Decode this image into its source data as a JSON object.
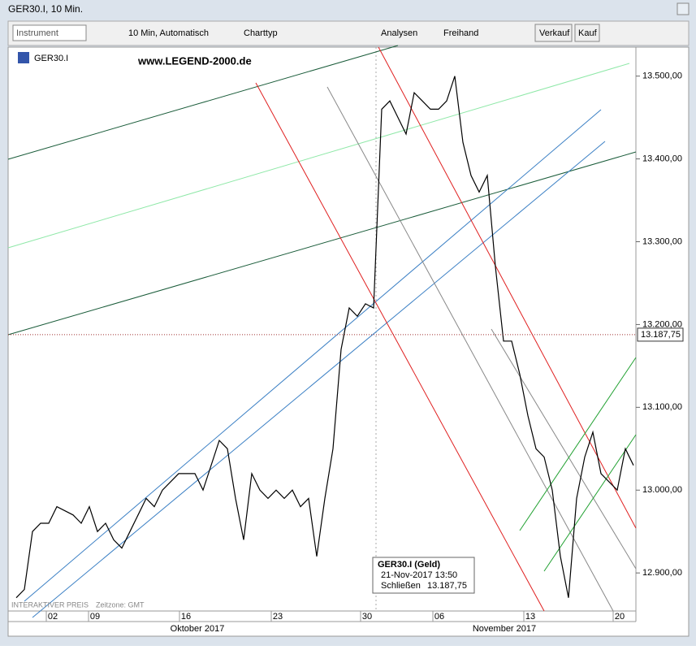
{
  "window": {
    "title": "GER30.I, 10 Min."
  },
  "toolbar": {
    "instrument": "Instrument",
    "interval": "10 Min,  Automatisch",
    "charttype": "Charttyp",
    "analysen": "Analysen",
    "freihand": "Freihand",
    "verkauf": "Verkauf",
    "kauf": "Kauf"
  },
  "chart_data": {
    "type": "line",
    "symbol": "GER30.I",
    "watermark": "www.LEGEND-2000.de",
    "footer": "INTERAKTIVER PREIS",
    "timezone": "Zeitzone: GMT",
    "color": "#000000",
    "values": [
      12870,
      12880,
      12950,
      12960,
      12960,
      12980,
      12975,
      12970,
      12960,
      12980,
      12950,
      12960,
      12940,
      12930,
      12950,
      12970,
      12990,
      12980,
      13000,
      13010,
      13020,
      13020,
      13020,
      13000,
      13030,
      13060,
      13050,
      12990,
      12940,
      13020,
      13000,
      12990,
      13000,
      12990,
      13000,
      12980,
      12990,
      12920,
      12990,
      13050,
      13170,
      13220,
      13210,
      13225,
      13220,
      13460,
      13470,
      13450,
      13430,
      13480,
      13470,
      13460,
      13460,
      13470,
      13500,
      13420,
      13380,
      13360,
      13380,
      13270,
      13180,
      13180,
      13140,
      13090,
      13050,
      13040,
      13000,
      12920,
      12870,
      12990,
      13040,
      13070,
      13020,
      13010,
      13000,
      13050,
      13030
    ],
    "ylim": [
      12856,
      13535
    ],
    "yticks": [
      {
        "value": 12900,
        "label": "12.900,00"
      },
      {
        "value": 13000,
        "label": "13.000,00"
      },
      {
        "value": 13100,
        "label": "13.100,00"
      },
      {
        "value": 13200,
        "label": "13.200,00"
      },
      {
        "value": 13300,
        "label": "13.300,00"
      },
      {
        "value": 13400,
        "label": "13.400,00"
      },
      {
        "value": 13500,
        "label": "13.500,00"
      }
    ],
    "xticks": [
      "02",
      "09",
      "16",
      "23",
      "30",
      "06",
      "13",
      "20"
    ],
    "months": [
      "Oktober 2017",
      "November 2017"
    ],
    "last_price": {
      "value": 13187.75,
      "label": "13.187,75"
    },
    "tooltip": {
      "title": "GER30.I (Geld)",
      "date": "21-Nov-2017 13:50",
      "close_label": "Schließen",
      "close": "13.187,75"
    }
  }
}
